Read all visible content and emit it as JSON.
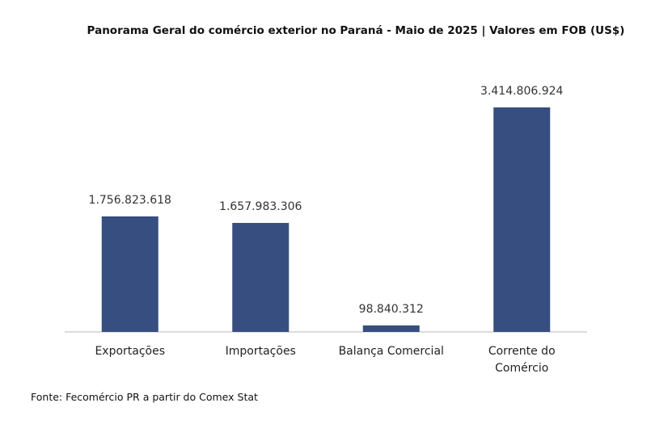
{
  "chart_data": {
    "type": "bar",
    "title": "Panorama Geral do comércio exterior no Paraná - Maio de 2025 | Valores em FOB (US$)",
    "categories": [
      "Exportações",
      "Importações",
      "Balança Comercial",
      "Corrente do\nComércio"
    ],
    "values": [
      1756823618,
      1657983306,
      98840312,
      3414806924
    ],
    "value_labels": [
      "1.756.823.618",
      "1.657.983.306",
      "98.840.312",
      "3.414.806.924"
    ],
    "color": "#374e80",
    "source": "Fonte: Fecomércio PR a partir do Comex Stat"
  }
}
